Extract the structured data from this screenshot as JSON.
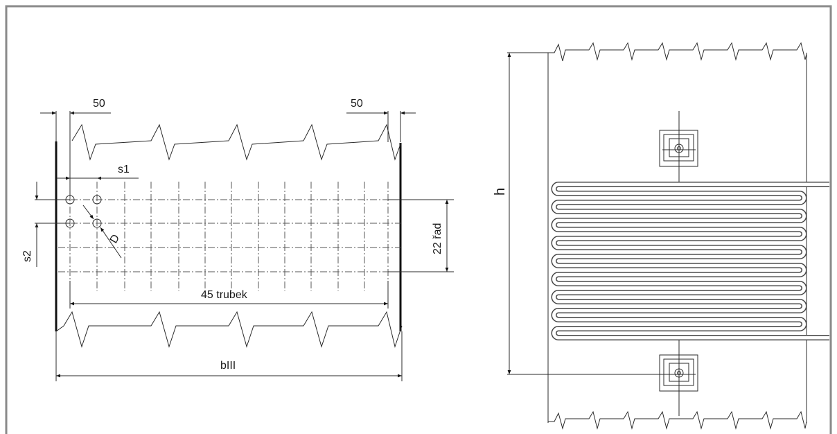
{
  "left_view": {
    "dim_left_margin": "50",
    "dim_right_margin": "50",
    "dim_tube_pitch": "s1",
    "dim_row_pitch": "s2",
    "dim_diameter": "D",
    "dim_rows": "22 řad",
    "dim_tubes": "45 trubek",
    "dim_width": "bIII"
  },
  "right_view": {
    "dim_height": "h"
  }
}
